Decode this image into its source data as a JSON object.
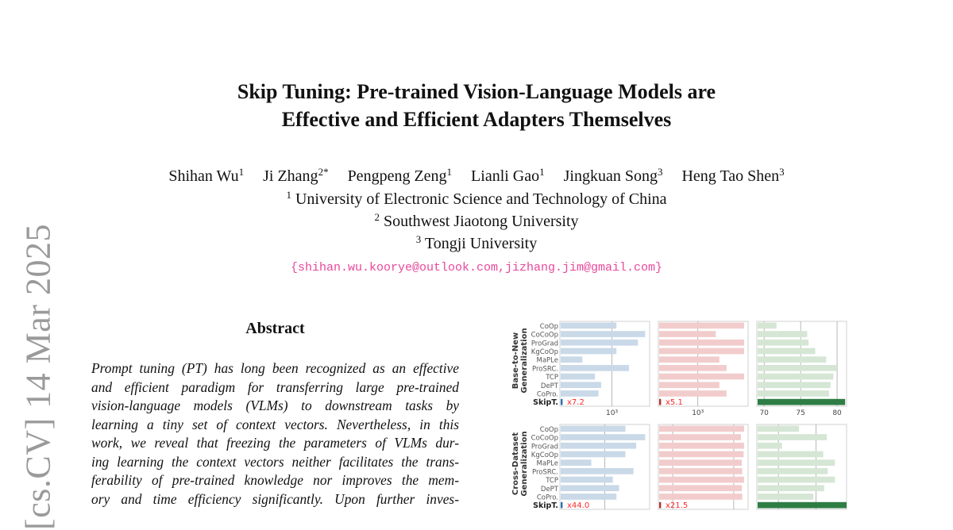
{
  "stamp": "[cs.CV]  14 Mar 2025",
  "title": [
    "Skip Tuning: Pre-trained Vision-Language Models are",
    "Effective and Efficient Adapters Themselves"
  ],
  "authors": [
    {
      "name": "Shihan Wu",
      "sup": "1"
    },
    {
      "name": "Ji Zhang",
      "sup": "2*"
    },
    {
      "name": "Pengpeng Zeng",
      "sup": "1"
    },
    {
      "name": "Lianli Gao",
      "sup": "1"
    },
    {
      "name": "Jingkuan Song",
      "sup": "3"
    },
    {
      "name": "Heng Tao Shen",
      "sup": "3"
    }
  ],
  "affiliations": [
    {
      "sup": "1",
      "name": "University of Electronic Science and Technology of China"
    },
    {
      "sup": "2",
      "name": "Southwest Jiaotong University"
    },
    {
      "sup": "3",
      "name": "Tongji University"
    }
  ],
  "email": "{shihan.wu.koorye@outlook.com,jizhang.jim@gmail.com}",
  "abstract": {
    "heading": "Abstract",
    "lines": [
      "Prompt tuning (PT) has long been recognized as an effective",
      "and efficient paradigm for transferring large pre-trained",
      "vision-language models (VLMs) to downstream tasks by",
      "learning a tiny set of context vectors. Nevertheless, in this",
      "work, we reveal that freezing the parameters of VLMs dur-",
      "ing learning the context vectors neither facilitates the trans-",
      "ferability of pre-trained knowledge nor improves the mem-",
      "ory and time efficiency significantly. Upon further inves-"
    ]
  },
  "chart_data": {
    "type": "bar",
    "categories": [
      "CoOp",
      "CoCoOp",
      "ProGrad",
      "KgCoOp",
      "MaPLe",
      "ProSRC.",
      "TCP",
      "DePT",
      "CoPro.",
      "SkipT."
    ],
    "colors": {
      "blue": "#c9d9e8",
      "blue_dark": "#2e6fa8",
      "red": "#f2cccc",
      "red_dark": "#b83030",
      "green": "#d5e6d5",
      "green_dark": "#2e7d45",
      "ratio_text": "#ff2a2a"
    },
    "rows": [
      {
        "label": "Base-to-New Generalization",
        "panels": [
          {
            "scale": "log",
            "xlim": [
              0,
              1
            ],
            "ticks": [
              {
                "v": 0.58,
                "t": "10³"
              }
            ],
            "values": [
              0.63,
              0.95,
              0.87,
              0.63,
              0.25,
              0.77,
              0.39,
              0.46,
              0.43,
              0.03
            ],
            "ratio": "x7.2",
            "color": "blue"
          },
          {
            "scale": "log",
            "xlim": [
              0,
              1
            ],
            "ticks": [
              {
                "v": 0.44,
                "t": "10³"
              }
            ],
            "values": [
              0.955,
              0.64,
              0.955,
              0.955,
              0.68,
              0.76,
              0.955,
              0.68,
              0.76,
              0.03
            ],
            "ratio": "x5.1",
            "color": "red"
          },
          {
            "scale": "linear",
            "xlim": [
              69,
              81.3
            ],
            "ticks": [
              {
                "v": 70,
                "t": "70"
              },
              {
                "v": 75,
                "t": "75"
              },
              {
                "v": 80,
                "t": "80"
              }
            ],
            "values": [
              71.7,
              75.9,
              76.1,
              77.0,
              78.5,
              80.0,
              79.5,
              79.1,
              78.9,
              81.1
            ],
            "color": "green"
          }
        ]
      },
      {
        "label": "Cross-Dataset Generalization",
        "panels": [
          {
            "scale": "log",
            "xlim": [
              0,
              1
            ],
            "ticks": [
              {
                "v": 0.5,
                "t": ""
              }
            ],
            "values": [
              0.73,
              0.95,
              0.85,
              0.73,
              0.35,
              0.82,
              0.59,
              0.66,
              0.63,
              0.03
            ],
            "ratio": "x44.0",
            "color": "blue"
          },
          {
            "scale": "log",
            "xlim": [
              0,
              1
            ],
            "ticks": [
              {
                "v": 0.16,
                "t": ""
              },
              {
                "v": 0.84,
                "t": ""
              }
            ],
            "values": [
              0.955,
              0.92,
              0.955,
              0.95,
              0.93,
              0.935,
              0.955,
              0.93,
              0.935,
              0.03
            ],
            "ratio": "x21.5",
            "color": "red"
          },
          {
            "scale": "linear",
            "xlim": [
              0,
              1
            ],
            "ticks": [
              {
                "v": 0.24,
                "t": ""
              },
              {
                "v": 0.66,
                "t": ""
              }
            ],
            "values": [
              0.47,
              0.78,
              0.28,
              0.74,
              0.87,
              0.79,
              0.87,
              0.75,
              0.63,
              1.0
            ],
            "color": "green"
          }
        ]
      }
    ]
  }
}
